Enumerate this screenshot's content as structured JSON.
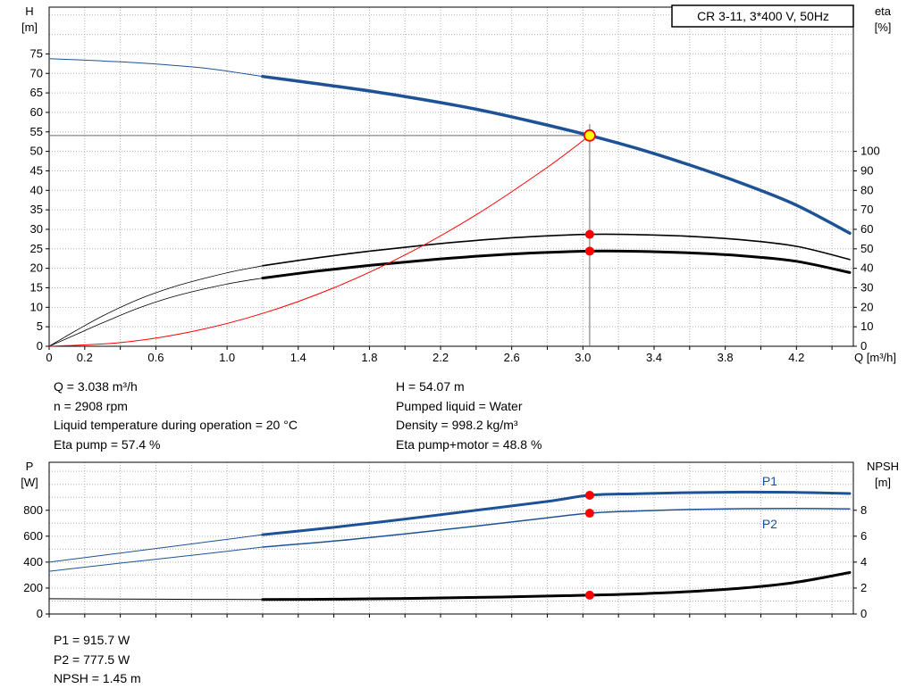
{
  "title_box": "CR 3-11, 3*400 V, 50Hz",
  "colors": {
    "curve_blue": "#1d5296",
    "curve_black": "#000000",
    "marker_red": "#ff0000",
    "duty_yellow": "#ffff00",
    "grid": "#b0b0b0",
    "crosshair": "#6b6b6b"
  },
  "info_top": {
    "left": [
      "Q = 3.038 m³/h",
      "n = 2908 rpm",
      "Liquid temperature during operation = 20 °C",
      "Eta pump = 57.4 %"
    ],
    "right": [
      "H = 54.07 m",
      "Pumped liquid = Water",
      "Density = 998.2 kg/m³",
      "Eta pump+motor = 48.8 %"
    ]
  },
  "info_bottom": [
    "P1 = 915.7 W",
    "P2 = 777.5 W",
    "NPSH = 1.45 m"
  ],
  "chart_data": [
    {
      "name": "qh-chart",
      "type": "line",
      "title": "CR 3-11, 3*400 V, 50Hz",
      "x_axis": {
        "min": 0,
        "max": 4.52,
        "grid_step": 0.2,
        "title": "Q [m³/h]",
        "labels": [
          {
            "v": 0,
            "t": "0"
          },
          {
            "v": 0.2,
            "t": "0.2"
          },
          {
            "v": 0.6,
            "t": "0.6"
          },
          {
            "v": 1.0,
            "t": "1.0"
          },
          {
            "v": 1.4,
            "t": "1.4"
          },
          {
            "v": 1.8,
            "t": "1.8"
          },
          {
            "v": 2.2,
            "t": "2.2"
          },
          {
            "v": 2.6,
            "t": "2.6"
          },
          {
            "v": 3.0,
            "t": "3.0"
          },
          {
            "v": 3.4,
            "t": "3.4"
          },
          {
            "v": 3.8,
            "t": "3.8"
          },
          {
            "v": 4.2,
            "t": "4.2"
          }
        ]
      },
      "left_axis": {
        "title": "H",
        "unit": "[m]",
        "min": 0,
        "max": 87,
        "grid_step": 5,
        "label_step": 5,
        "label_max": 75
      },
      "right_axis": {
        "title": "eta",
        "unit": "[%]",
        "label_step": 10,
        "label_max": 100,
        "scale": 0.5
      },
      "crosshair": {
        "x": 3.038,
        "h": 54.07,
        "v_top": 57
      },
      "series": [
        {
          "name": "qh-curve-low",
          "axis": "left",
          "color": "#1d5296",
          "width": 1,
          "points": [
            [
              0,
              73.8
            ],
            [
              0.3,
              73.2
            ],
            [
              0.6,
              72.4
            ],
            [
              0.9,
              71.2
            ],
            [
              1.2,
              69.2
            ]
          ]
        },
        {
          "name": "qh-curve",
          "axis": "left",
          "color": "#1d5296",
          "width": 3.5,
          "points": [
            [
              1.2,
              69.2
            ],
            [
              1.5,
              67.4
            ],
            [
              1.8,
              65.5
            ],
            [
              2.1,
              63.3
            ],
            [
              2.4,
              60.8
            ],
            [
              2.7,
              57.8
            ],
            [
              3.038,
              54.07
            ],
            [
              3.3,
              50.8
            ],
            [
              3.6,
              46.5
            ],
            [
              3.9,
              41.7
            ],
            [
              4.2,
              36.2
            ],
            [
              4.5,
              29.0
            ]
          ]
        },
        {
          "name": "eta-pump-low",
          "axis": "right",
          "color": "#000000",
          "width": 0.8,
          "points": [
            [
              0,
              0
            ],
            [
              0.15,
              8
            ],
            [
              0.3,
              15.5
            ],
            [
              0.5,
              24
            ],
            [
              0.7,
              30.5
            ],
            [
              0.9,
              35.5
            ],
            [
              1.05,
              38.7
            ],
            [
              1.2,
              41.3
            ]
          ]
        },
        {
          "name": "eta-pump-curve",
          "axis": "right",
          "color": "#000000",
          "width": 1.6,
          "points": [
            [
              1.2,
              41.3
            ],
            [
              1.5,
              45.3
            ],
            [
              1.8,
              48.8
            ],
            [
              2.1,
              51.8
            ],
            [
              2.4,
              54.3
            ],
            [
              2.7,
              56.2
            ],
            [
              3.038,
              57.4
            ],
            [
              3.3,
              57.3
            ],
            [
              3.6,
              56.4
            ],
            [
              3.9,
              54.6
            ],
            [
              4.2,
              51.3
            ],
            [
              4.5,
              44.5
            ]
          ]
        },
        {
          "name": "eta-pump-motor-low",
          "axis": "right",
          "color": "#000000",
          "width": 0.8,
          "points": [
            [
              0,
              0
            ],
            [
              0.15,
              6
            ],
            [
              0.3,
              12
            ],
            [
              0.5,
              19.5
            ],
            [
              0.7,
              25.5
            ],
            [
              0.9,
              30
            ],
            [
              1.05,
              32.8
            ],
            [
              1.2,
              35
            ]
          ]
        },
        {
          "name": "eta-pump-motor-curve",
          "axis": "right",
          "color": "#000000",
          "width": 3,
          "points": [
            [
              1.2,
              35
            ],
            [
              1.5,
              38.5
            ],
            [
              1.8,
              41.5
            ],
            [
              2.1,
              44
            ],
            [
              2.4,
              46.2
            ],
            [
              2.7,
              47.8
            ],
            [
              3.038,
              48.8
            ],
            [
              3.3,
              48.7
            ],
            [
              3.6,
              47.9
            ],
            [
              3.9,
              46.4
            ],
            [
              4.2,
              43.6
            ],
            [
              4.5,
              37.8
            ]
          ]
        },
        {
          "name": "duty-system-curve",
          "axis": "left",
          "color": "#ff0000",
          "width": 1,
          "points": [
            [
              0,
              0
            ],
            [
              0.4,
              0.94
            ],
            [
              0.8,
              3.75
            ],
            [
              1.2,
              8.43
            ],
            [
              1.6,
              14.99
            ],
            [
              2.0,
              23.42
            ],
            [
              2.4,
              33.73
            ],
            [
              2.8,
              45.91
            ],
            [
              3.038,
              54.07
            ]
          ]
        }
      ],
      "markers": [
        {
          "type": "dot",
          "axis": "right",
          "x": 3.038,
          "v": 57.4
        },
        {
          "type": "dot",
          "axis": "right",
          "x": 3.038,
          "v": 48.8
        },
        {
          "type": "duty",
          "axis": "left",
          "x": 3.038,
          "v": 54.07
        }
      ],
      "annotations": []
    },
    {
      "name": "power-chart",
      "type": "line",
      "x_axis": {
        "min": 0,
        "max": 4.52,
        "grid_step": 0.2,
        "title": "",
        "labels": []
      },
      "left_axis": {
        "title": "P",
        "unit": "[W]",
        "min": 0,
        "max": 1170,
        "grid_step": 100,
        "label_step": 200,
        "label_max": 800
      },
      "right_axis": {
        "title": "NPSH",
        "unit": "[m]",
        "label_step": 2,
        "label_max": 8,
        "scale": 100
      },
      "series": [
        {
          "name": "p1-curve-low",
          "axis": "left",
          "color": "#1d5296",
          "width": 1,
          "points": [
            [
              0,
              400
            ],
            [
              0.4,
              470
            ],
            [
              0.8,
              540
            ],
            [
              1.2,
              612
            ]
          ]
        },
        {
          "name": "p1-curve",
          "axis": "left",
          "color": "#1d5296",
          "width": 3,
          "points": [
            [
              1.2,
              612
            ],
            [
              1.6,
              668
            ],
            [
              2.0,
              732
            ],
            [
              2.4,
              800
            ],
            [
              2.8,
              868
            ],
            [
              3.038,
              915.7
            ],
            [
              3.3,
              928
            ],
            [
              3.6,
              936
            ],
            [
              3.9,
              940
            ],
            [
              4.2,
              938
            ],
            [
              4.5,
              929
            ]
          ]
        },
        {
          "name": "p2-curve-low",
          "axis": "left",
          "color": "#1d5296",
          "width": 1,
          "points": [
            [
              0,
              330
            ],
            [
              0.4,
              392
            ],
            [
              0.8,
              452
            ],
            [
              1.2,
              516
            ]
          ]
        },
        {
          "name": "p2-curve",
          "axis": "left",
          "color": "#1d5296",
          "width": 1.5,
          "points": [
            [
              1.2,
              516
            ],
            [
              1.6,
              562
            ],
            [
              2.0,
              618
            ],
            [
              2.4,
              678
            ],
            [
              2.8,
              742
            ],
            [
              3.038,
              777.5
            ],
            [
              3.3,
              794
            ],
            [
              3.6,
              806
            ],
            [
              3.9,
              812
            ],
            [
              4.2,
              814
            ],
            [
              4.5,
              811
            ]
          ]
        },
        {
          "name": "npsh-curve-low",
          "axis": "right",
          "color": "#000000",
          "width": 1,
          "points": [
            [
              0,
              1.18
            ],
            [
              0.6,
              1.14
            ],
            [
              1.2,
              1.12
            ]
          ]
        },
        {
          "name": "npsh-curve",
          "axis": "right",
          "color": "#000000",
          "width": 3,
          "points": [
            [
              1.2,
              1.12
            ],
            [
              1.6,
              1.14
            ],
            [
              2.0,
              1.2
            ],
            [
              2.4,
              1.28
            ],
            [
              2.8,
              1.38
            ],
            [
              3.038,
              1.45
            ],
            [
              3.3,
              1.55
            ],
            [
              3.6,
              1.73
            ],
            [
              3.9,
              2.0
            ],
            [
              4.2,
              2.45
            ],
            [
              4.5,
              3.2
            ]
          ]
        }
      ],
      "markers": [
        {
          "type": "dot",
          "axis": "left",
          "x": 3.038,
          "v": 915.7
        },
        {
          "type": "dot",
          "axis": "left",
          "x": 3.038,
          "v": 777.5
        },
        {
          "type": "dot",
          "axis": "right",
          "x": 3.038,
          "v": 1.45
        }
      ],
      "annotations": [
        {
          "x": 4.05,
          "v": 990,
          "text": "P1",
          "color": "#1d5296"
        },
        {
          "x": 4.05,
          "v": 660,
          "text": "P2",
          "color": "#1d5296"
        }
      ]
    }
  ]
}
